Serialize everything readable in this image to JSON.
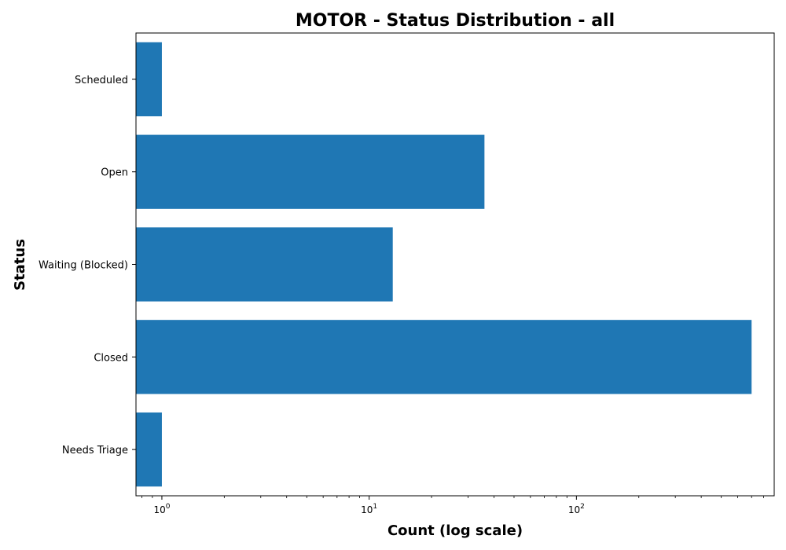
{
  "chart_data": {
    "type": "bar",
    "orientation": "horizontal",
    "title": "MOTOR - Status Distribution - all",
    "xlabel": "Count (log scale)",
    "ylabel": "Status",
    "x_scale": "log",
    "xlim": [
      0.75,
      900
    ],
    "x_ticks": [
      {
        "value": 1,
        "base": "10",
        "exp": "0"
      },
      {
        "value": 10,
        "base": "10",
        "exp": "1"
      },
      {
        "value": 100,
        "base": "10",
        "exp": "2"
      }
    ],
    "categories": [
      "Needs Triage",
      "Closed",
      "Waiting (Blocked)",
      "Open",
      "Scheduled"
    ],
    "values": [
      1,
      700,
      13,
      36,
      1
    ],
    "bar_color": "#1f77b4",
    "grid": false
  }
}
